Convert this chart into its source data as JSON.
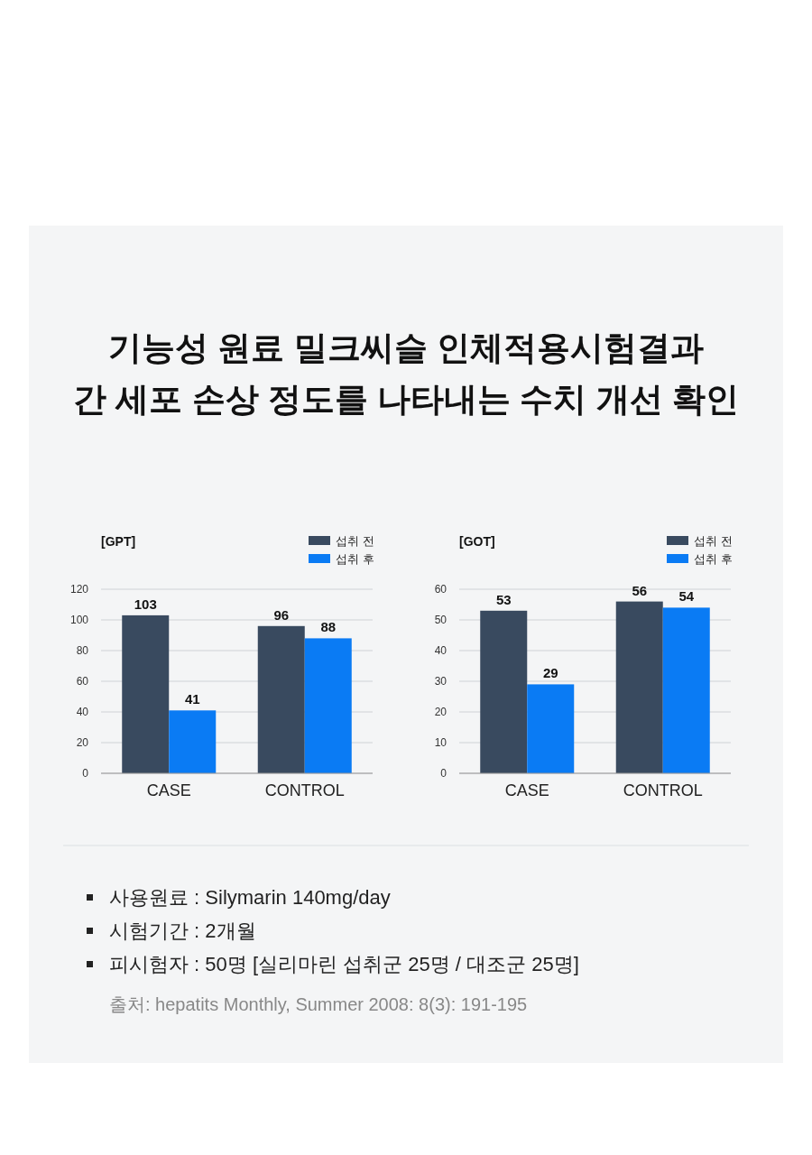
{
  "chart_data": [
    {
      "type": "bar",
      "title": "기능성 원료 밀크씨슬 인체적용시험결과\n간 세포 손상 정도를 나타내는 수치 개선 확인",
      "ylabel": "[GPT]",
      "categories": [
        "CASE",
        "CONTROL"
      ],
      "series": [
        {
          "name": "섭취 전",
          "color": "#394a5f",
          "values": [
            103,
            96
          ]
        },
        {
          "name": "섭취 후",
          "color": "#0a7bf4",
          "values": [
            41,
            88
          ]
        }
      ],
      "ylim": [
        0,
        120
      ],
      "yticks": [
        0,
        20,
        40,
        60,
        80,
        100,
        120
      ],
      "grid": "y",
      "legend": "top right",
      "data_labels": true
    },
    {
      "type": "bar",
      "ylabel": "[GOT]",
      "categories": [
        "CASE",
        "CONTROL"
      ],
      "series": [
        {
          "name": "섭취 전",
          "color": "#394a5f",
          "values": [
            53,
            56
          ]
        },
        {
          "name": "섭취 후",
          "color": "#0a7bf4",
          "values": [
            29,
            54
          ]
        }
      ],
      "ylim": [
        0,
        60
      ],
      "yticks": [
        0,
        10,
        20,
        30,
        40,
        50,
        60
      ],
      "grid": "y",
      "legend": "top right",
      "data_labels": true,
      "annotations": [
        "사용원료 : Silymarin 140mg/day",
        "시험기간 : 2개월",
        "피시험자 : 50명 [실리마린 섭취군 25명 / 대조군 25명]",
        "출처: hepatits Monthly, Summer 2008: 8(3): 191-195"
      ]
    }
  ]
}
